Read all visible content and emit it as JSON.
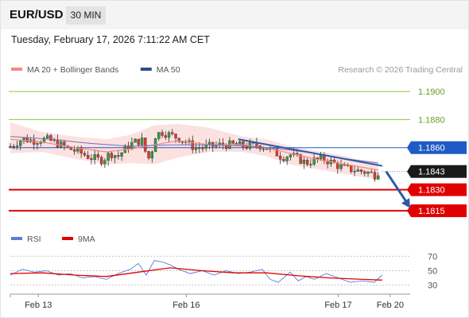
{
  "header": {
    "symbol": "EUR/USD",
    "timeframe": "30 MIN",
    "timestamp": "Tuesday, February 17, 2026 7:11:22 AM CET"
  },
  "legend": {
    "items": [
      {
        "label": "MA 20 + Bollinger Bands",
        "color": "#f28b82"
      },
      {
        "label": "MA 50",
        "color": "#2c4f8c"
      }
    ],
    "copyright": "Research © 2026 Trading Central"
  },
  "rsi_legend": {
    "items": [
      {
        "label": "RSI",
        "color": "#5b7fd0"
      },
      {
        "label": "9MA",
        "color": "#e00000"
      }
    ]
  },
  "chart_data": [
    {
      "type": "candlestick",
      "title": "EUR/USD 30 MIN",
      "ylim": [
        1.1806,
        1.1908
      ],
      "xlim": [
        0,
        100
      ],
      "x_tick_labels": [
        {
          "label": "Feb 13",
          "x": 7
        },
        {
          "label": "Feb 16",
          "x": 44
        },
        {
          "label": "Feb 17",
          "x": 82
        },
        {
          "label": "Feb 20",
          "x": 95
        }
      ],
      "price_levels": [
        {
          "value": 1.19,
          "label": "1.1900",
          "style": "green-line"
        },
        {
          "value": 1.188,
          "label": "1.1880",
          "style": "green-line"
        },
        {
          "value": 1.186,
          "label": "1.1860",
          "style": "resistance",
          "color": "#1e5bc6"
        },
        {
          "value": 1.1843,
          "label": "1.1843",
          "style": "last-price",
          "color": "#1a1a1a"
        },
        {
          "value": 1.183,
          "label": "1.1830",
          "style": "support",
          "color": "#e00000"
        },
        {
          "value": 1.1815,
          "label": "1.1815",
          "style": "support",
          "color": "#e00000"
        }
      ],
      "trendline": {
        "start": {
          "x": 57,
          "y": 1.1866
        },
        "end": {
          "x": 93,
          "y": 1.1847
        }
      },
      "projection_arrow": {
        "start": {
          "x": 94,
          "y": 1.1843
        },
        "end": {
          "x": 100,
          "y": 1.1817
        }
      },
      "close_path": [
        [
          0,
          1.1861
        ],
        [
          3,
          1.1866
        ],
        [
          6,
          1.1865
        ],
        [
          9,
          1.1866
        ],
        [
          11,
          1.1864
        ],
        [
          14,
          1.186
        ],
        [
          17,
          1.1857
        ],
        [
          20,
          1.1853
        ],
        [
          23,
          1.1851
        ],
        [
          25,
          1.1856
        ],
        [
          27,
          1.1854
        ],
        [
          29,
          1.186
        ],
        [
          31,
          1.1864
        ],
        [
          33,
          1.1865
        ],
        [
          34,
          1.1855
        ],
        [
          35,
          1.1851
        ],
        [
          36,
          1.1868
        ],
        [
          37,
          1.187
        ],
        [
          38,
          1.1871
        ],
        [
          40,
          1.1869
        ],
        [
          42,
          1.1867
        ],
        [
          44,
          1.1864
        ],
        [
          46,
          1.186
        ],
        [
          48,
          1.186
        ],
        [
          50,
          1.1861
        ],
        [
          53,
          1.1862
        ],
        [
          56,
          1.1862
        ],
        [
          59,
          1.1861
        ],
        [
          62,
          1.1862
        ],
        [
          64,
          1.186
        ],
        [
          66,
          1.1857
        ],
        [
          68,
          1.1853
        ],
        [
          70,
          1.1855
        ],
        [
          72,
          1.1852
        ],
        [
          74,
          1.1849
        ],
        [
          76,
          1.1851
        ],
        [
          78,
          1.1852
        ],
        [
          80,
          1.185
        ],
        [
          82,
          1.1847
        ],
        [
          84,
          1.1845
        ],
        [
          86,
          1.1844
        ],
        [
          88,
          1.1843
        ],
        [
          90,
          1.1842
        ],
        [
          91,
          1.184
        ],
        [
          92,
          1.1843
        ]
      ],
      "ma20_path": [
        [
          0,
          1.1866
        ],
        [
          8,
          1.1864
        ],
        [
          16,
          1.186
        ],
        [
          24,
          1.1857
        ],
        [
          30,
          1.1859
        ],
        [
          36,
          1.1862
        ],
        [
          42,
          1.1865
        ],
        [
          50,
          1.1862
        ],
        [
          58,
          1.1862
        ],
        [
          64,
          1.186
        ],
        [
          70,
          1.1856
        ],
        [
          76,
          1.1852
        ],
        [
          82,
          1.1849
        ],
        [
          88,
          1.1846
        ],
        [
          92,
          1.1844
        ]
      ],
      "ma50_path": [
        [
          0,
          1.1868
        ],
        [
          10,
          1.1866
        ],
        [
          20,
          1.1863
        ],
        [
          30,
          1.1861
        ],
        [
          40,
          1.1862
        ],
        [
          50,
          1.1862
        ],
        [
          60,
          1.1861
        ],
        [
          68,
          1.1859
        ],
        [
          76,
          1.1856
        ],
        [
          84,
          1.1852
        ],
        [
          92,
          1.1849
        ]
      ],
      "bollinger_band": {
        "upper": [
          [
            0,
            1.1878
          ],
          [
            8,
            1.1871
          ],
          [
            16,
            1.1868
          ],
          [
            24,
            1.1866
          ],
          [
            30,
            1.1869
          ],
          [
            36,
            1.1876
          ],
          [
            42,
            1.1877
          ],
          [
            50,
            1.1874
          ],
          [
            58,
            1.1868
          ],
          [
            64,
            1.1866
          ],
          [
            70,
            1.1861
          ],
          [
            76,
            1.1858
          ],
          [
            82,
            1.1855
          ],
          [
            88,
            1.1851
          ],
          [
            92,
            1.185
          ]
        ],
        "lower": [
          [
            0,
            1.1856
          ],
          [
            8,
            1.1857
          ],
          [
            16,
            1.1852
          ],
          [
            24,
            1.1848
          ],
          [
            30,
            1.1849
          ],
          [
            36,
            1.1848
          ],
          [
            42,
            1.1853
          ],
          [
            50,
            1.1857
          ],
          [
            58,
            1.1857
          ],
          [
            64,
            1.1854
          ],
          [
            70,
            1.1848
          ],
          [
            76,
            1.1845
          ],
          [
            82,
            1.1842
          ],
          [
            88,
            1.1839
          ],
          [
            92,
            1.1837
          ]
        ]
      }
    },
    {
      "type": "line",
      "title": "RSI",
      "ylim": [
        22,
        78
      ],
      "y_ticks": [
        70,
        50,
        30
      ],
      "series": [
        {
          "name": "RSI",
          "color": "#5b7fd0",
          "values": [
            [
              0,
              44
            ],
            [
              3,
              52
            ],
            [
              6,
              48
            ],
            [
              9,
              50
            ],
            [
              12,
              44
            ],
            [
              15,
              46
            ],
            [
              18,
              40
            ],
            [
              21,
              42
            ],
            [
              24,
              38
            ],
            [
              27,
              46
            ],
            [
              30,
              52
            ],
            [
              32,
              60
            ],
            [
              34,
              44
            ],
            [
              36,
              64
            ],
            [
              38,
              62
            ],
            [
              40,
              58
            ],
            [
              42,
              52
            ],
            [
              45,
              46
            ],
            [
              48,
              50
            ],
            [
              51,
              44
            ],
            [
              54,
              50
            ],
            [
              57,
              46
            ],
            [
              60,
              48
            ],
            [
              63,
              52
            ],
            [
              65,
              38
            ],
            [
              67,
              34
            ],
            [
              70,
              48
            ],
            [
              72,
              36
            ],
            [
              74,
              42
            ],
            [
              76,
              38
            ],
            [
              79,
              46
            ],
            [
              82,
              40
            ],
            [
              85,
              34
            ],
            [
              88,
              36
            ],
            [
              91,
              34
            ],
            [
              93,
              44
            ]
          ]
        },
        {
          "name": "9MA",
          "color": "#e00000",
          "values": [
            [
              0,
              46
            ],
            [
              8,
              47
            ],
            [
              16,
              44
            ],
            [
              24,
              42
            ],
            [
              32,
              48
            ],
            [
              40,
              54
            ],
            [
              48,
              50
            ],
            [
              56,
              47
            ],
            [
              64,
              47
            ],
            [
              72,
              43
            ],
            [
              80,
              40
            ],
            [
              88,
              38
            ],
            [
              93,
              37
            ]
          ]
        }
      ]
    }
  ]
}
